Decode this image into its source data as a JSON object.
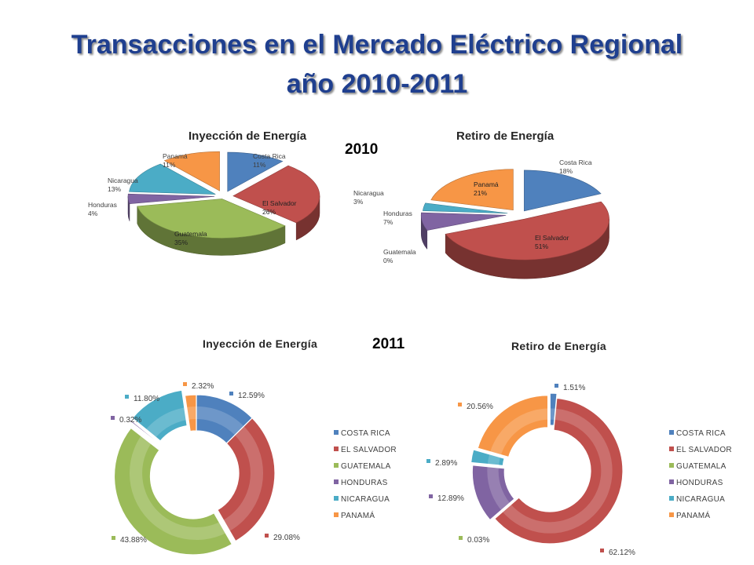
{
  "slide": {
    "title_line1": "Transacciones en el Mercado Eléctrico Regional",
    "title_line2": "año 2010-2011",
    "year_2010": "2010",
    "year_2011": "2011"
  },
  "chart_data": [
    {
      "type": "pie",
      "title": "Inyección de Energía",
      "period": "2010",
      "categories": [
        "Costa Rica",
        "El Salvador",
        "Guatemala",
        "Honduras",
        "Nicaragua",
        "Panamá"
      ],
      "labels": [
        "11%",
        "26%",
        "35%",
        "4%",
        "13%",
        "11%"
      ],
      "values": [
        11,
        26,
        35,
        4,
        13,
        11
      ],
      "colors": [
        "#4f81bd",
        "#c0504d",
        "#9bbb59",
        "#8064a2",
        "#4bacc6",
        "#f79646"
      ]
    },
    {
      "type": "pie",
      "title": "Retiro de Energía",
      "period": "2010",
      "categories": [
        "Costa Rica",
        "El Salvador",
        "Guatemala",
        "Honduras",
        "Nicaragua",
        "Panamá"
      ],
      "labels": [
        "18%",
        "51%",
        "0%",
        "7%",
        "3%",
        "21%"
      ],
      "values": [
        18,
        51,
        0,
        7,
        3,
        21
      ],
      "colors": [
        "#4f81bd",
        "#c0504d",
        "#9bbb59",
        "#8064a2",
        "#4bacc6",
        "#f79646"
      ]
    },
    {
      "type": "pie",
      "title": "Inyección de Energía",
      "period": "2011",
      "categories": [
        "COSTA RICA",
        "EL SALVADOR",
        "GUATEMALA",
        "HONDURAS",
        "NICARAGUA",
        "PANAMÁ"
      ],
      "labels": [
        "12.59%",
        "29.08%",
        "43.88%",
        "0.32%",
        "11.80%",
        "2.32%"
      ],
      "values": [
        12.59,
        29.08,
        43.88,
        0.32,
        11.8,
        2.32
      ],
      "colors": [
        "#4f81bd",
        "#c0504d",
        "#9bbb59",
        "#8064a2",
        "#4bacc6",
        "#f79646"
      ],
      "legend_position": "right"
    },
    {
      "type": "pie",
      "title": "Retiro de Energía",
      "period": "2011",
      "categories": [
        "COSTA RICA",
        "EL SALVADOR",
        "GUATEMALA",
        "HONDURAS",
        "NICARAGUA",
        "PANAMÁ"
      ],
      "labels": [
        "1.51%",
        "62.12%",
        "0.03%",
        "12.89%",
        "2.89%",
        "20.56%"
      ],
      "values": [
        1.51,
        62.12,
        0.03,
        12.89,
        2.89,
        20.56
      ],
      "colors": [
        "#4f81bd",
        "#c0504d",
        "#9bbb59",
        "#8064a2",
        "#4bacc6",
        "#f79646"
      ],
      "legend_position": "right"
    }
  ]
}
